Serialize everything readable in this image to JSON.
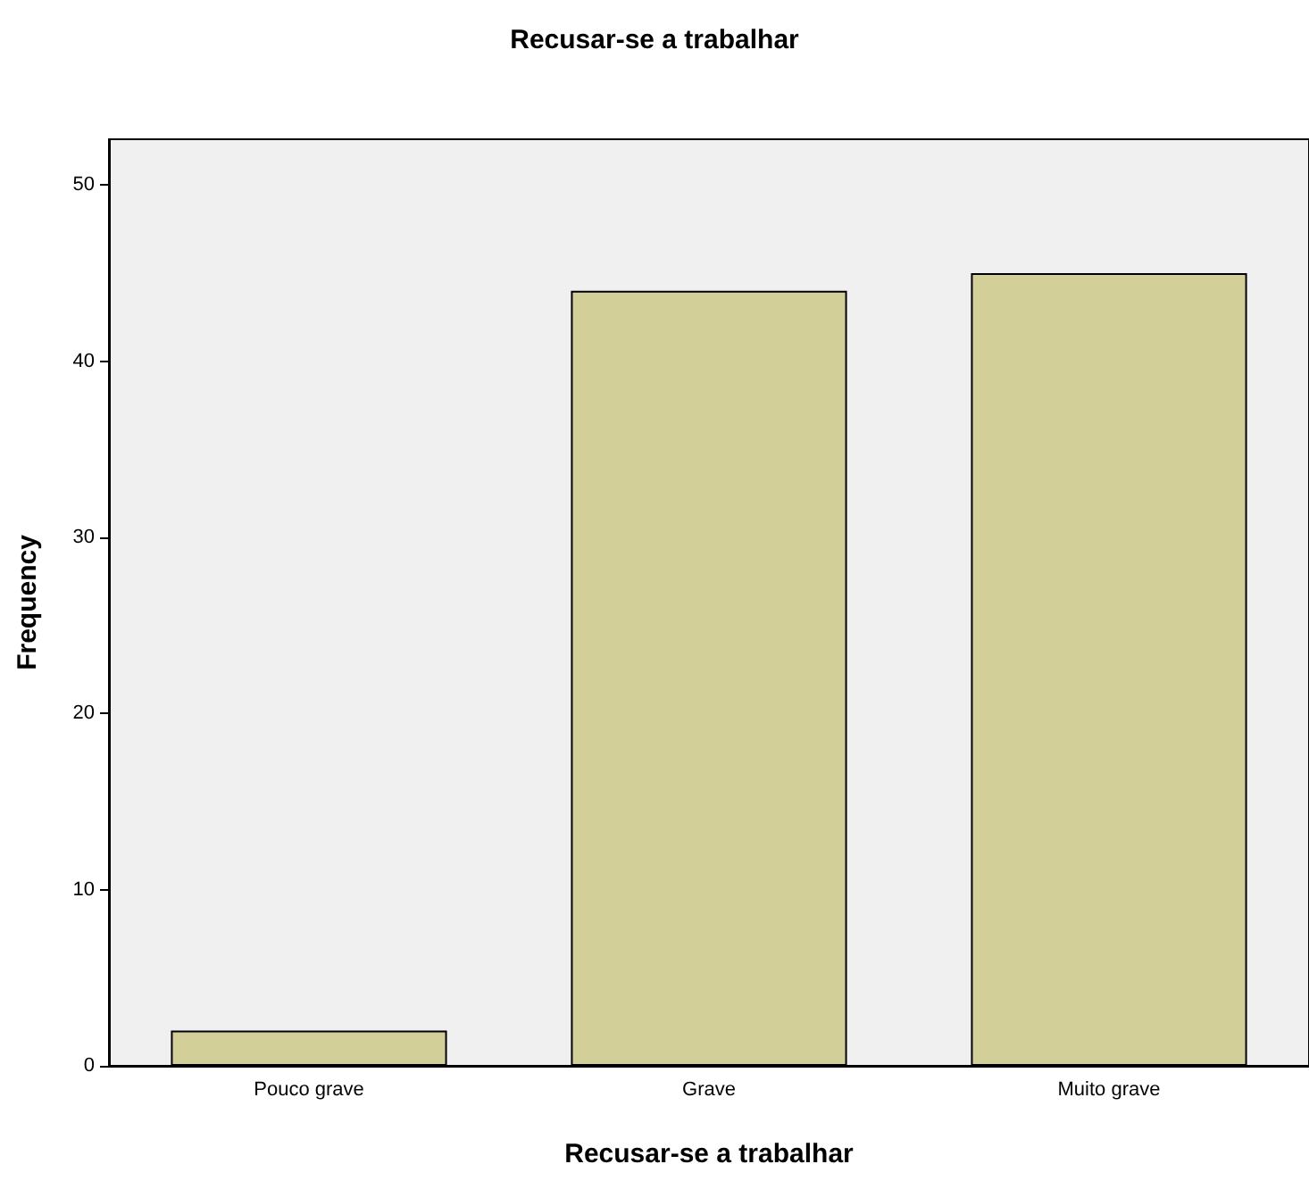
{
  "chart_data": {
    "type": "bar",
    "title": "Recusar-se a trabalhar",
    "xlabel": "Recusar-se a trabalhar",
    "ylabel": "Frequency",
    "categories": [
      "Pouco grave",
      "Grave",
      "Muito grave"
    ],
    "values": [
      2,
      44,
      45
    ],
    "color": "#d3cf98",
    "ylim": [
      0,
      52.6
    ],
    "yticks": [
      0,
      10,
      20,
      30,
      40,
      50
    ],
    "grid": false
  }
}
